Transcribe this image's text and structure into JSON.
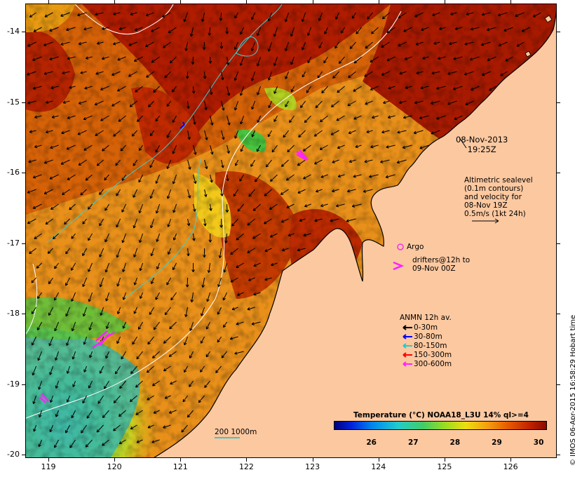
{
  "map": {
    "lat_ticks": [
      "-14",
      "-15",
      "-16",
      "-17",
      "-18",
      "-19",
      "-20"
    ],
    "lat_values": [
      -14,
      -15,
      -16,
      -17,
      -18,
      -19,
      -20
    ],
    "lon_ticks": [
      "119",
      "120",
      "121",
      "122",
      "123",
      "124",
      "125",
      "126"
    ],
    "lon_values": [
      119,
      120,
      121,
      122,
      123,
      124,
      125,
      126
    ],
    "lon_range": [
      118.65,
      126.7
    ],
    "lat_range": [
      -20.05,
      -13.6
    ],
    "colors": {
      "land": "#fcc8a0",
      "sst_hot": "#b01c00",
      "sst_warm": "#e25a00",
      "sst_orange": "#f59a10",
      "sst_yellow": "#f2d21a",
      "sst_green": "#58c83a",
      "sst_cyan": "#36b9b0",
      "contour_cyan": "#3ccfcf",
      "contour_white": "#ffffff",
      "argo": "#ee33ee",
      "drifter": "#ff22ff"
    }
  },
  "date": {
    "line1": "08-Nov-2013",
    "line2": "19:25Z"
  },
  "altimetry": {
    "lines": [
      "Altimetric sealevel",
      "(0.1m contours)",
      "and velocity for",
      "08-Nov 19Z",
      "0.5m/s (1kt 24h)"
    ]
  },
  "argo": {
    "label": "Argo"
  },
  "drifters": {
    "line1": "drifters@12h to",
    "line2": "09-Nov 00Z"
  },
  "anmn": {
    "title": "ANMN 12h av.",
    "items": [
      {
        "label": "0-30m",
        "color": "#000000"
      },
      {
        "label": "30-80m",
        "color": "#0000ff"
      },
      {
        "label": "80-150m",
        "color": "#22cccc"
      },
      {
        "label": "150-300m",
        "color": "#ff0000"
      },
      {
        "label": "300-600m",
        "color": "#ff22ff"
      }
    ]
  },
  "scale": {
    "label": "200  1000m"
  },
  "colorbar": {
    "title": "Temperature (°C) NOAA18_L3U 14% ql>=4",
    "ticks": [
      "26",
      "27",
      "28",
      "29",
      "30"
    ],
    "tick_values": [
      26,
      27,
      28,
      29,
      30
    ],
    "range": [
      25.1,
      30.2
    ]
  },
  "credit": {
    "text": "© IMOS 06-Apr-2015 16:58:29 Hobart time"
  }
}
